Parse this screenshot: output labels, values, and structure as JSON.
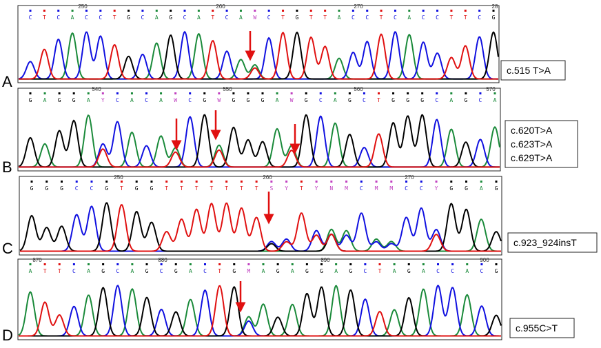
{
  "panels": [
    {
      "letter": "A",
      "numbers": [
        "250",
        "260",
        "270",
        "28"
      ],
      "labels": [
        "c.515 T>A"
      ],
      "bases": [
        "C",
        "T",
        "C",
        "A",
        "C",
        "C",
        "T",
        "G",
        "C",
        "A",
        "G",
        "C",
        "A",
        "T",
        "C",
        "A",
        "W",
        "C",
        "T",
        "G",
        "T",
        "T",
        "A",
        "C",
        "C",
        "T",
        "C",
        "A",
        "C",
        "C",
        "T",
        "T",
        "C",
        "G"
      ]
    },
    {
      "letter": "B",
      "numbers": [
        "540",
        "550",
        "560",
        "570"
      ],
      "labels": [
        "c.620T>A",
        "c.623T>A",
        "c.629T>A"
      ],
      "bases": [
        "G",
        "A",
        "G",
        "G",
        "A",
        "Y",
        "C",
        "A",
        "C",
        "A",
        "W",
        "C",
        "G",
        "W",
        "G",
        "G",
        "G",
        "A",
        "W",
        "G",
        "C",
        "A",
        "G",
        "C",
        "T",
        "G",
        "G",
        "G",
        "C",
        "A",
        "G",
        "C",
        "A"
      ]
    },
    {
      "letter": "C",
      "numbers": [
        "250",
        "260",
        "270"
      ],
      "labels": [
        "c.923_924insT"
      ],
      "bases": [
        "G",
        "G",
        "G",
        "C",
        "C",
        "G",
        "T",
        "G",
        "G",
        "T",
        "T",
        "T",
        "T",
        "T",
        "T",
        "T",
        "S",
        "Y",
        "T",
        "Y",
        "N",
        "M",
        "C",
        "M",
        "M",
        "C",
        "C",
        "Y",
        "G",
        "G",
        "A",
        "G"
      ]
    },
    {
      "letter": "D",
      "numbers": [
        "870",
        "880",
        "890",
        "900"
      ],
      "labels": [
        "c.955C>T"
      ],
      "bases": [
        "A",
        "T",
        "T",
        "C",
        "A",
        "G",
        "C",
        "A",
        "G",
        "C",
        "G",
        "A",
        "C",
        "T",
        "G",
        "M",
        "A",
        "G",
        "A",
        "G",
        "G",
        "A",
        "G",
        "C",
        "T",
        "A",
        "G",
        "A",
        "C",
        "C",
        "A",
        "C",
        "G"
      ]
    }
  ]
}
